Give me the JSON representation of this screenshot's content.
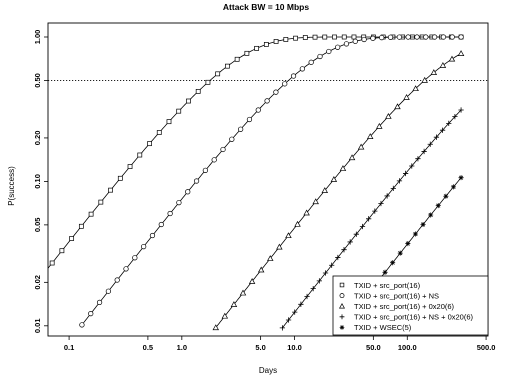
{
  "chart_data": {
    "type": "line",
    "title": "Attack BW = 10 Mbps",
    "xlabel": "Days",
    "ylabel": "P(success)",
    "x_scale": "log",
    "y_scale": "log",
    "xlim": [
      0.065,
      520
    ],
    "ylim": [
      0.0085,
      1.25
    ],
    "x_ticks": [
      {
        "value": 0.1,
        "label": "0.1"
      },
      {
        "value": 0.5,
        "label": "0.5"
      },
      {
        "value": 1,
        "label": "1.0"
      },
      {
        "value": 5,
        "label": "5.0"
      },
      {
        "value": 10,
        "label": "10.0"
      },
      {
        "value": 50,
        "label": "50.0"
      },
      {
        "value": 100,
        "label": "100.0"
      },
      {
        "value": 500,
        "label": "500.0"
      }
    ],
    "y_ticks": [
      {
        "value": 0.01,
        "label": "0.01"
      },
      {
        "value": 0.02,
        "label": "0.02"
      },
      {
        "value": 0.05,
        "label": "0.05"
      },
      {
        "value": 0.1,
        "label": "0.10"
      },
      {
        "value": 0.2,
        "label": "0.20"
      },
      {
        "value": 0.5,
        "label": "0.50"
      },
      {
        "value": 1,
        "label": "1.00"
      }
    ],
    "reference_line": {
      "y": 0.5,
      "style": "dotted"
    },
    "legend_position": "bottom-right",
    "series": [
      {
        "name": "TXID + src_port(16)",
        "marker": "square",
        "x_start": 0.058,
        "x_end": 300,
        "rate": 0.39,
        "points": 44
      },
      {
        "name": "TXID + src_port(16) + NS",
        "marker": "circle",
        "x_start": 0.13,
        "x_end": 300,
        "rate": 0.0785,
        "points": 44
      },
      {
        "name": "TXID + src_port(16) + 0x20(6)",
        "marker": "triangle",
        "x_start": 2.0,
        "x_end": 300,
        "rate": 0.00488,
        "points": 28
      },
      {
        "name": "TXID + src_port(16) + NS + 0x20(6)",
        "marker": "plus",
        "x_start": 7.8,
        "x_end": 300,
        "rate": 0.001247,
        "points": 30
      },
      {
        "name": "TXID + WSEC(5)",
        "marker": "asterisk",
        "x_start": 25,
        "x_end": 300,
        "rate": 0.000374,
        "points": 17
      }
    ]
  }
}
